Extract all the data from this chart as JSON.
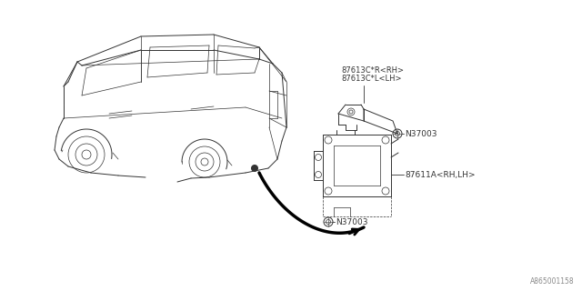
{
  "bg_color": "#ffffff",
  "line_color": "#333333",
  "fig_width": 6.4,
  "fig_height": 3.2,
  "dpi": 100,
  "diagram_code": "A865001158",
  "labels": {
    "bracket_upper": "87613C*R<RH>\n87613C*L<LH>",
    "bolt_upper": "N37003",
    "bracket_lower": "87611A<RH,LH>",
    "bolt_lower": "N37003"
  },
  "car_color": "#444444",
  "arrow_color": "#111111"
}
